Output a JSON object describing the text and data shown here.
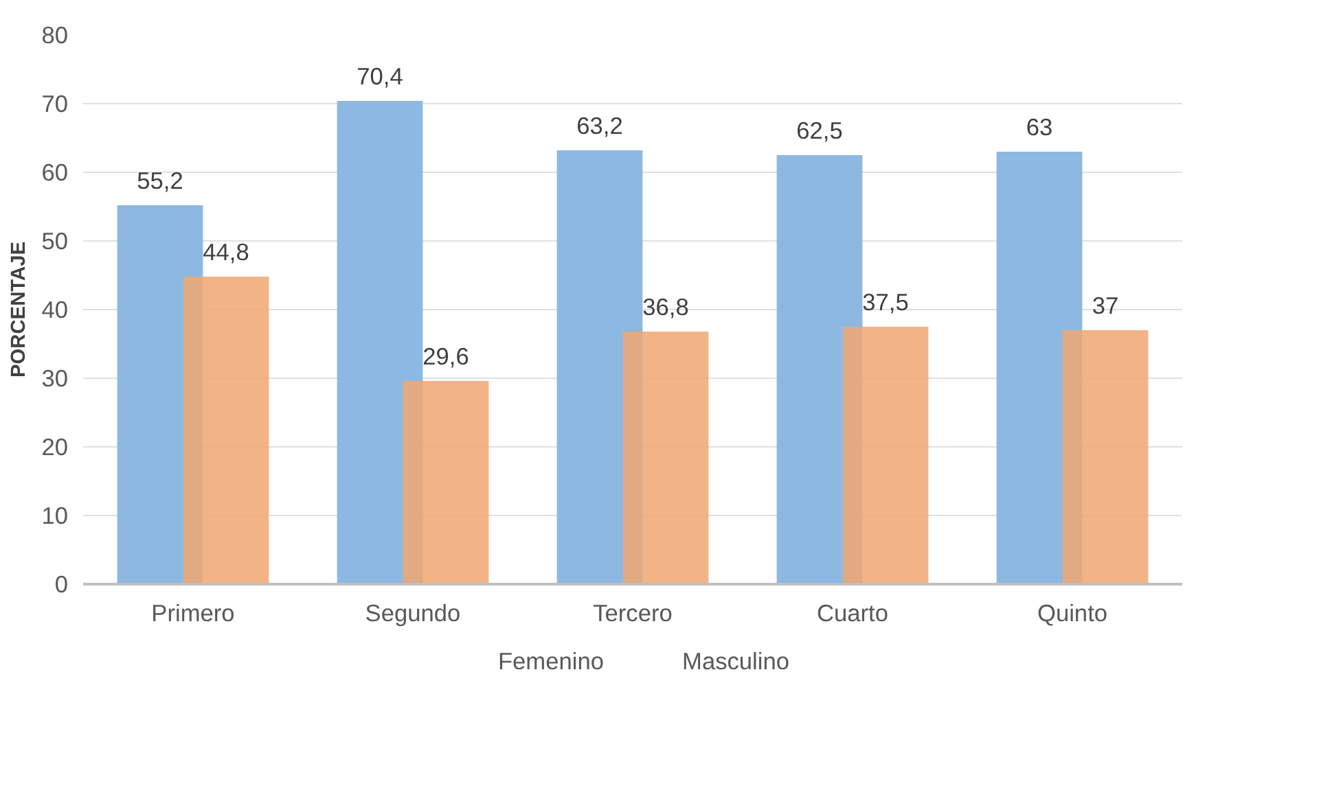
{
  "chart_data": {
    "type": "bar",
    "ylabel": "PORCENTAJE",
    "categories": [
      "Primero",
      "Segundo",
      "Tercero",
      "Cuarto",
      "Quinto"
    ],
    "series": [
      {
        "name": "Femenino",
        "color": "#8db8e2",
        "values": [
          55.2,
          70.4,
          63.2,
          62.5,
          63
        ],
        "value_labels": [
          "55,2",
          "70,4",
          "63,2",
          "62,5",
          "63"
        ]
      },
      {
        "name": "Masculino",
        "color": "#f0a772",
        "values": [
          44.8,
          29.6,
          36.8,
          37.5,
          37
        ],
        "value_labels": [
          "44,8",
          "29,6",
          "36,8",
          "37,5",
          "37"
        ]
      }
    ],
    "ylim": [
      0,
      80
    ],
    "yticks": [
      0,
      10,
      20,
      30,
      40,
      50,
      60,
      70,
      80
    ],
    "grid": "y",
    "legend": "bottom"
  }
}
